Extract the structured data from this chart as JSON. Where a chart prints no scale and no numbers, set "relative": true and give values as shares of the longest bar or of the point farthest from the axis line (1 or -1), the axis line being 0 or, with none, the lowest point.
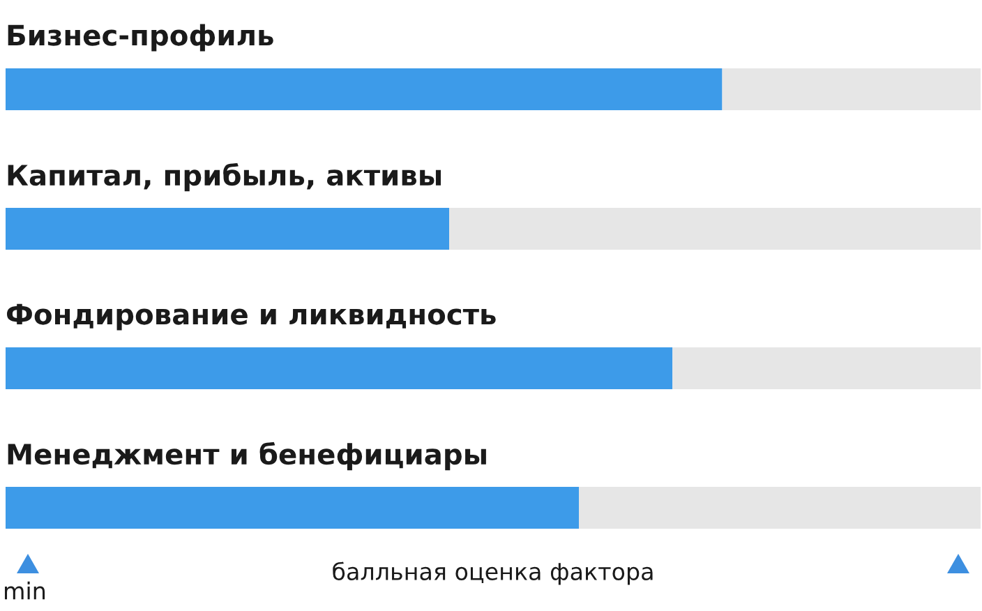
{
  "chart_data": {
    "type": "bar",
    "orientation": "horizontal",
    "relative": true,
    "stacked": true,
    "xlabel": "балльная оценка фактора",
    "categories": [
      "Бизнес-профиль",
      "Капитал, прибыль, активы",
      "Фондирование и ликвидность",
      "Менеджмент и бенефициары"
    ],
    "series": [
      {
        "color": "#3d9be9",
        "values": [
          0.735,
          0.455,
          0.684,
          0.588
        ]
      },
      {
        "color": "#e6e6e6",
        "values": [
          0.265,
          0.545,
          0.316,
          0.412
        ]
      }
    ],
    "annotations": [
      "min"
    ],
    "legend": false
  }
}
